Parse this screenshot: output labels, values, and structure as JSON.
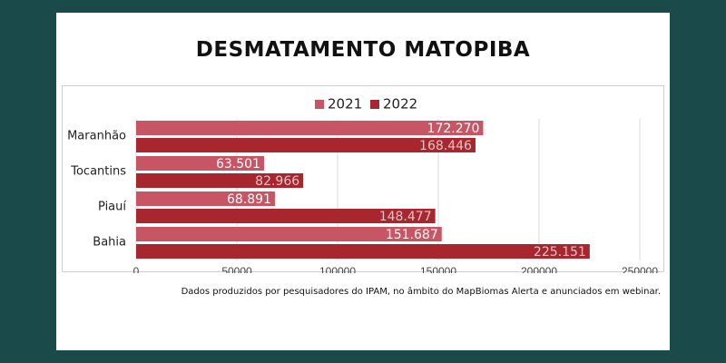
{
  "colors": {
    "background": "#1a4a4a",
    "series_2021": "#c85563",
    "series_2022": "#a8262e",
    "label_2021": "#ffffff",
    "label_2022": "#e3c3c7"
  },
  "chart_data": {
    "type": "bar",
    "orientation": "horizontal",
    "title": "DESMATAMENTO MATOPIBA",
    "categories": [
      "Maranhão",
      "Tocantins",
      "Piauí",
      "Bahia"
    ],
    "series": [
      {
        "name": "2021",
        "values": [
          172270,
          63501,
          68891,
          151687
        ],
        "labels": [
          "172.270",
          "63.501",
          "68.891",
          "151.687"
        ]
      },
      {
        "name": "2022",
        "values": [
          168446,
          82966,
          148477,
          225151
        ],
        "labels": [
          "168.446",
          "82.966",
          "148.477",
          "225.151"
        ]
      }
    ],
    "x_ticks": [
      "0",
      "50000",
      "100000",
      "150000",
      "200000",
      "250000"
    ],
    "xlim": [
      0,
      250000
    ],
    "grid": true,
    "legend": "top-center"
  },
  "caption": "Dados produzidos por pesquisadores do IPAM, no âmbito do MapBiomas Alerta e anunciados em webinar."
}
